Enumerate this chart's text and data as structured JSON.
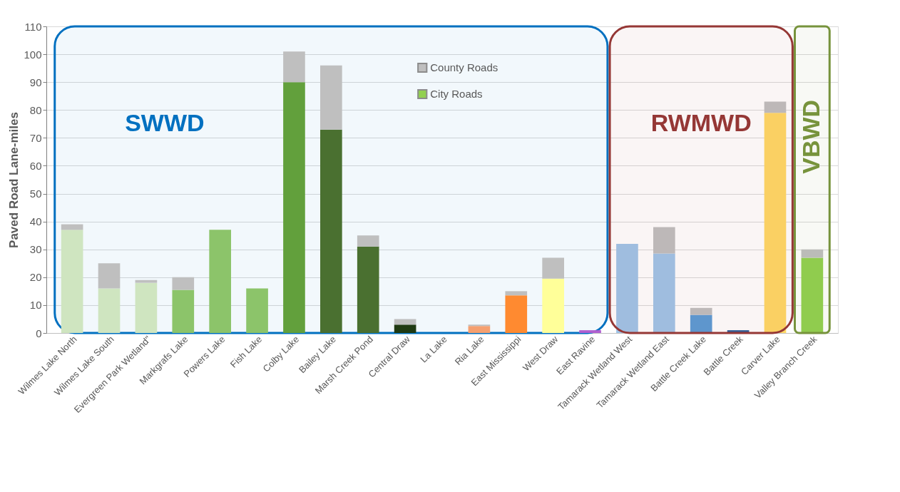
{
  "chart_data": {
    "type": "bar",
    "stacked": true,
    "ylabel": "Paved Road Lane-miles",
    "categories": [
      "Wilmes Lake North",
      "Wilmes Lake South",
      "Evergreen Park Wetland\"",
      "Markgrafs Lake",
      "Powers Lake",
      "Fish Lake",
      "Colby Lake",
      "Bailey Lake",
      "Marsh Creek Pond",
      "Central Draw",
      "La Lake",
      "Ria Lake",
      "East Mississippi",
      "West Draw",
      "East Ravine",
      "Tamarack Wetland West",
      "Tamarack Wetland East",
      "Battle Creek Lake",
      "Battle Creek",
      "Carver Lake",
      "Valley Branch Creek"
    ],
    "series": [
      {
        "name": "City Roads",
        "color": "#92d050",
        "colors": [
          "#cfe5c0",
          "#cfe5c0",
          "#cfe5c0",
          "#8cc46a",
          "#8cc46a",
          "#8cc46a",
          "#62a03c",
          "#4a7030",
          "#4a7030",
          "#1f3a12",
          "#1f3a12",
          "#f5a070",
          "#ff8a30",
          "#ffff99",
          "#b060d0",
          "#a0c4e8",
          "#a0c4e8",
          "#5b9bd5",
          "#2e5f9a",
          "#ffd966",
          "#92d050"
        ],
        "values": [
          37,
          16,
          18,
          15.5,
          37,
          16,
          90,
          73,
          31,
          3,
          0,
          2.5,
          13.5,
          19.5,
          1,
          32,
          28.5,
          6.5,
          1,
          79,
          27
        ]
      },
      {
        "name": "County Roads",
        "color": "#bfbfbf",
        "values": [
          2,
          9,
          1,
          4.5,
          0,
          0,
          11,
          23,
          4,
          2,
          0,
          0.5,
          1.5,
          7.5,
          0,
          0,
          9.5,
          2.5,
          0,
          4,
          3
        ]
      }
    ],
    "ylim": [
      0,
      110
    ],
    "yticks": [
      0,
      10,
      20,
      30,
      40,
      50,
      60,
      70,
      80,
      90,
      100,
      110
    ],
    "grid": "y",
    "legend": "top",
    "bands": [
      {
        "axis": "x",
        "from": "Wilmes Lake North",
        "to": "East Ravine",
        "label": "SWWD",
        "color": "#0070c0"
      },
      {
        "axis": "x",
        "from": "Tamarack Wetland West",
        "to": "Carver Lake",
        "label": "RWMWD",
        "color": "#953735"
      },
      {
        "axis": "x",
        "from": "Valley Branch Creek",
        "to": "Valley Branch Creek",
        "label": "VBWD",
        "color": "#77933c"
      }
    ]
  }
}
